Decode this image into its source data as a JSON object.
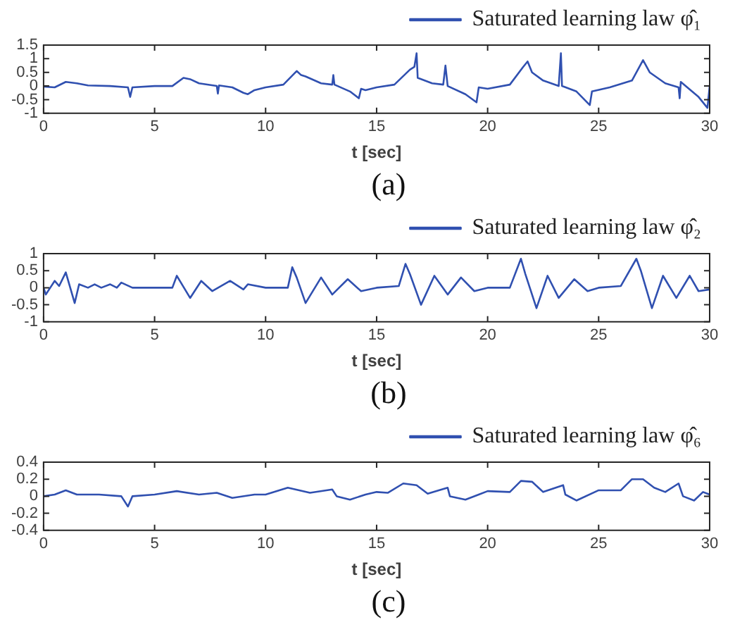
{
  "chart_data": [
    {
      "type": "line",
      "xlabel": "t [sec]",
      "annotations": [
        "(a)"
      ],
      "xlim": [
        0,
        30
      ],
      "xticks": [
        0,
        5,
        10,
        15,
        20,
        25,
        30
      ],
      "ylim": [
        -1,
        1.5
      ],
      "yticks": [
        -1,
        -0.5,
        0,
        0.5,
        1,
        1.5
      ],
      "grid": false,
      "legend": "top right",
      "marker": "none",
      "line_style": "solid",
      "series": [
        {
          "name": "Saturated learning law φ̂₁",
          "color": "#3050b0",
          "x": [
            0,
            0.5,
            1,
            1.5,
            2,
            3,
            3.8,
            3.9,
            4,
            5,
            5.8,
            6.3,
            6.6,
            7,
            7.8,
            7.85,
            7.9,
            8.5,
            9,
            9.2,
            9.5,
            10,
            10.8,
            11.4,
            11.6,
            11.8,
            12.5,
            13,
            13.05,
            13.1,
            13.8,
            14.2,
            14.3,
            14.5,
            15,
            15.8,
            16.5,
            16.7,
            16.8,
            16.85,
            17.5,
            18,
            18.1,
            18.2,
            19,
            19.5,
            19.6,
            20,
            21,
            21.6,
            21.8,
            22,
            22.5,
            23.2,
            23.3,
            23.35,
            24,
            24.6,
            24.7,
            25.5,
            26.5,
            27,
            27.3,
            28,
            28.6,
            28.65,
            28.7,
            29.5,
            29.9,
            30
          ],
          "values": [
            -0.02,
            -0.05,
            0.15,
            0.1,
            0.02,
            0,
            -0.05,
            -0.4,
            -0.05,
            0,
            0,
            0.3,
            0.25,
            0.1,
            0,
            -0.28,
            0.02,
            -0.05,
            -0.25,
            -0.3,
            -0.15,
            -0.05,
            0.05,
            0.55,
            0.4,
            0.35,
            0.1,
            0.05,
            0.4,
            0.05,
            -0.2,
            -0.45,
            -0.1,
            -0.15,
            -0.05,
            0.05,
            0.6,
            0.7,
            1.2,
            0.3,
            0.1,
            0.05,
            0.75,
            0,
            -0.3,
            -0.6,
            -0.05,
            -0.1,
            0.05,
            0.7,
            0.9,
            0.5,
            0.2,
            0,
            1.2,
            0,
            -0.2,
            -0.7,
            -0.2,
            -0.05,
            0.2,
            0.95,
            0.5,
            0.1,
            -0.05,
            -0.45,
            0.15,
            -0.4,
            -0.8,
            0
          ]
        }
      ]
    },
    {
      "type": "line",
      "xlabel": "t [sec]",
      "annotations": [
        "(b)"
      ],
      "xlim": [
        0,
        30
      ],
      "xticks": [
        0,
        5,
        10,
        15,
        20,
        25,
        30
      ],
      "ylim": [
        -1,
        1
      ],
      "yticks": [
        -1,
        -0.5,
        0,
        0.5,
        1
      ],
      "grid": false,
      "legend": "top right",
      "marker": "none",
      "line_style": "solid",
      "series": [
        {
          "name": "Saturated learning law φ̂₂",
          "color": "#3050b0",
          "x": [
            0,
            0.1,
            0.3,
            0.5,
            0.7,
            1,
            1.4,
            1.6,
            2,
            2.3,
            2.6,
            3,
            3.3,
            3.5,
            4,
            4.5,
            5,
            5.8,
            6,
            6.6,
            7.1,
            7.6,
            8.4,
            9,
            9.2,
            10,
            11,
            11.2,
            11.4,
            11.8,
            12.5,
            13,
            13.7,
            14.3,
            15,
            16,
            16.3,
            16.5,
            17,
            17.6,
            18.2,
            18.8,
            19.4,
            20,
            21,
            21.5,
            21.7,
            22.2,
            22.7,
            23.2,
            23.9,
            24.5,
            25,
            26,
            26.7,
            26.9,
            27.4,
            27.9,
            28.5,
            29.1,
            29.5,
            30
          ],
          "values": [
            0,
            -0.2,
            0,
            0.2,
            0.05,
            0.45,
            -0.45,
            0.1,
            0,
            0.1,
            0,
            0.1,
            0,
            0.15,
            0,
            0,
            0,
            0,
            0.35,
            -0.3,
            0.2,
            -0.1,
            0.2,
            -0.05,
            0.1,
            0,
            0,
            0.6,
            0.3,
            -0.45,
            0.3,
            -0.2,
            0.25,
            -0.1,
            0,
            0.05,
            0.7,
            0.4,
            -0.5,
            0.35,
            -0.2,
            0.3,
            -0.1,
            0,
            0,
            0.85,
            0.4,
            -0.6,
            0.35,
            -0.3,
            0.25,
            -0.1,
            0,
            0.05,
            0.85,
            0.5,
            -0.6,
            0.35,
            -0.3,
            0.35,
            -0.1,
            -0.05
          ]
        }
      ]
    },
    {
      "type": "line",
      "xlabel": "t [sec]",
      "annotations": [
        "(c)"
      ],
      "xlim": [
        0,
        30
      ],
      "xticks": [
        0,
        5,
        10,
        15,
        20,
        25,
        30
      ],
      "ylim": [
        -0.4,
        0.4
      ],
      "yticks": [
        -0.4,
        -0.2,
        0,
        0.2,
        0.4
      ],
      "grid": false,
      "legend": "top right",
      "marker": "none",
      "line_style": "solid",
      "series": [
        {
          "name": "Saturated learning law φ̂₆",
          "color": "#3050b0",
          "x": [
            0,
            0.5,
            1,
            1.5,
            2.5,
            3.5,
            3.8,
            4,
            5,
            6,
            7,
            7.8,
            8.5,
            9.5,
            10,
            11,
            12,
            13,
            13.2,
            13.8,
            14.5,
            15,
            15.5,
            16.2,
            16.8,
            17.3,
            17.8,
            18.2,
            18.3,
            19,
            19.6,
            20,
            21,
            21.5,
            22,
            22.5,
            23.4,
            23.5,
            24,
            25,
            26,
            26.5,
            27,
            27.5,
            28,
            28.6,
            28.8,
            29.3,
            29.7,
            30
          ],
          "values": [
            0,
            0.02,
            0.07,
            0.02,
            0.02,
            0,
            -0.12,
            0,
            0.02,
            0.06,
            0.02,
            0.04,
            -0.02,
            0.02,
            0.02,
            0.1,
            0.04,
            0.08,
            0,
            -0.04,
            0.02,
            0.05,
            0.04,
            0.15,
            0.13,
            0.03,
            0.07,
            0.1,
            0,
            -0.04,
            0.02,
            0.06,
            0.05,
            0.18,
            0.17,
            0.05,
            0.13,
            0.02,
            -0.05,
            0.07,
            0.07,
            0.2,
            0.2,
            0.1,
            0.05,
            0.15,
            0,
            -0.05,
            0.05,
            0.02
          ]
        }
      ]
    }
  ]
}
